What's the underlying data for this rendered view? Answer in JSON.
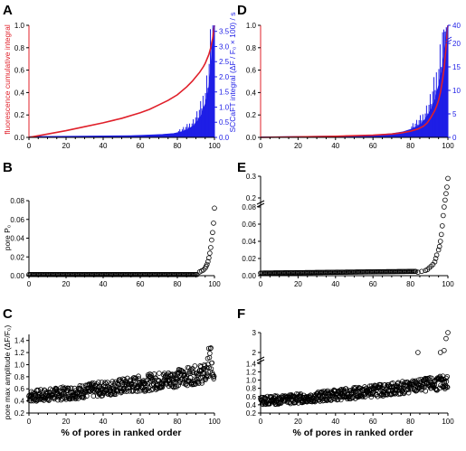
{
  "colors": {
    "axis": "#000000",
    "red_line": "#e0202a",
    "blue_fill": "#1e1ee6",
    "marker_stroke": "#000000"
  },
  "chart_data": [
    {
      "id": "A",
      "type": "area",
      "panel_label": "A",
      "ylabel_left": "fluorescence cumulative integral",
      "xlim": [
        0,
        100
      ],
      "ylim_left": [
        0,
        1.0
      ],
      "ylim_right": [
        0,
        3.7
      ],
      "x_ticks": [
        "0",
        "20",
        "40",
        "60",
        "80",
        "100"
      ],
      "y_ticks_left": [
        "0.0",
        "0.2",
        "0.4",
        "0.6",
        "0.8",
        "1.0"
      ],
      "y_ticks_right": [
        "0.0",
        "0.5",
        "1.0",
        "1.5",
        "2.0",
        "2.5",
        "3.0",
        "3.5"
      ],
      "series": [
        {
          "axis": "left",
          "style": "line",
          "x": [
            0,
            10,
            20,
            30,
            40,
            50,
            60,
            65,
            70,
            75,
            80,
            85,
            88,
            90,
            92,
            94,
            95,
            96,
            97,
            98,
            99,
            100
          ],
          "y": [
            0,
            0.03,
            0.06,
            0.095,
            0.13,
            0.17,
            0.22,
            0.25,
            0.29,
            0.33,
            0.38,
            0.45,
            0.5,
            0.54,
            0.58,
            0.63,
            0.66,
            0.7,
            0.74,
            0.8,
            0.88,
            1.0
          ]
        },
        {
          "axis": "right",
          "style": "filled-bars",
          "x": [
            0,
            20,
            40,
            55,
            65,
            72,
            78,
            82,
            85,
            87,
            89,
            90,
            91,
            92,
            93,
            94,
            95,
            96,
            97,
            98,
            98.5,
            99,
            99.5,
            100
          ],
          "y": [
            0.03,
            0.04,
            0.05,
            0.06,
            0.08,
            0.1,
            0.13,
            0.18,
            0.25,
            0.32,
            0.4,
            0.5,
            0.55,
            0.65,
            0.75,
            0.95,
            1.1,
            1.35,
            1.7,
            2.3,
            2.8,
            3.2,
            3.6,
            3.7
          ]
        }
      ]
    },
    {
      "id": "D",
      "type": "area",
      "panel_label": "D",
      "ylabel_right": "SCCaFT integral (ΔF / F₀ × 100) / s",
      "xlim": [
        0,
        100
      ],
      "ylim_left": [
        0,
        1.0
      ],
      "ylim_right": [
        0,
        40
      ],
      "x_ticks": [
        "0",
        "20",
        "40",
        "60",
        "80",
        "100"
      ],
      "y_ticks_left": [
        "0.0",
        "0.2",
        "0.4",
        "0.6",
        "0.8",
        "1.0"
      ],
      "y_ticks_right": [
        "0",
        "5",
        "10",
        "15",
        "20",
        "40"
      ],
      "right_axis_break": true,
      "series": [
        {
          "axis": "left",
          "style": "line",
          "x": [
            0,
            20,
            40,
            60,
            70,
            75,
            80,
            84,
            87,
            89,
            91,
            93,
            94,
            95,
            96,
            97,
            98,
            99,
            100
          ],
          "y": [
            0,
            0.005,
            0.01,
            0.02,
            0.03,
            0.04,
            0.055,
            0.075,
            0.1,
            0.13,
            0.18,
            0.24,
            0.28,
            0.33,
            0.4,
            0.5,
            0.62,
            0.8,
            1.0
          ]
        },
        {
          "axis": "right",
          "style": "filled-bars",
          "x": [
            0,
            20,
            40,
            60,
            70,
            76,
            80,
            84,
            86,
            88,
            90,
            91,
            92,
            93,
            94,
            95,
            96,
            97,
            98,
            98.5,
            99,
            100
          ],
          "y": [
            0.1,
            0.2,
            0.3,
            0.5,
            0.8,
            1.2,
            1.7,
            2.4,
            3.0,
            4.0,
            5.2,
            6.0,
            7.0,
            8.0,
            9.5,
            11.0,
            13.0,
            15.0,
            18.0,
            20.0,
            22.0,
            40.0
          ]
        }
      ]
    },
    {
      "id": "B",
      "type": "scatter",
      "panel_label": "B",
      "ylabel": "pore P₀",
      "xlim": [
        0,
        100
      ],
      "ylim": [
        0,
        0.08
      ],
      "x_ticks": [
        "0",
        "20",
        "40",
        "60",
        "80",
        "100"
      ],
      "y_ticks": [
        "0.00",
        "0.02",
        "0.04",
        "0.06",
        "0.08"
      ],
      "x": [
        92,
        93,
        94,
        95,
        95.5,
        96,
        96.5,
        97,
        97.5,
        98,
        98.5,
        99,
        99.5,
        100
      ],
      "y": [
        0.004,
        0.005,
        0.006,
        0.008,
        0.01,
        0.012,
        0.015,
        0.019,
        0.024,
        0.03,
        0.038,
        0.046,
        0.056,
        0.072
      ]
    },
    {
      "id": "E",
      "type": "scatter",
      "panel_label": "E",
      "xlim": [
        0,
        100
      ],
      "ylim": [
        0,
        0.3
      ],
      "y_ticks": [
        "0.00",
        "0.02",
        "0.04",
        "0.06",
        "0.08",
        "0.2",
        "0.3"
      ],
      "x_ticks": [
        "0",
        "20",
        "40",
        "60",
        "80",
        "100"
      ],
      "y_axis_break": true,
      "x": [
        84,
        86,
        88,
        89,
        90,
        91,
        92,
        93,
        93.5,
        94,
        95,
        95.5,
        96,
        96.5,
        97,
        97.5,
        98,
        98.5,
        99,
        99.5,
        100
      ],
      "y": [
        0.004,
        0.005,
        0.006,
        0.007,
        0.009,
        0.011,
        0.013,
        0.016,
        0.02,
        0.024,
        0.03,
        0.034,
        0.04,
        0.048,
        0.058,
        0.07,
        0.08,
        0.19,
        0.22,
        0.25,
        0.29
      ]
    },
    {
      "id": "C",
      "type": "scatter",
      "panel_label": "C",
      "ylabel": "pore max amplitude (ΔF/F₀)",
      "xlabel": "% of pores in ranked order",
      "xlim": [
        0,
        100
      ],
      "ylim": [
        0.2,
        1.5
      ],
      "x_ticks": [
        "0",
        "20",
        "40",
        "60",
        "80",
        "100"
      ],
      "y_ticks": [
        "0.2",
        "0.4",
        "0.6",
        "0.8",
        "1.0",
        "1.2",
        "1.4"
      ],
      "trend": {
        "start": 0.48,
        "end": 0.88,
        "spread": 0.16
      }
    },
    {
      "id": "F",
      "type": "scatter",
      "panel_label": "F",
      "xlabel": "% of pores in ranked order",
      "xlim": [
        0,
        100
      ],
      "ylim": [
        0.2,
        3.0
      ],
      "x_ticks": [
        "0",
        "20",
        "40",
        "60",
        "80",
        "100"
      ],
      "y_ticks": [
        "0.2",
        "0.4",
        "0.6",
        "0.8",
        "1.0",
        "1.2",
        "1.4",
        "2",
        "3"
      ],
      "y_axis_break": true,
      "trend": {
        "start": 0.5,
        "end": 0.95,
        "spread": 0.17
      },
      "outliers": {
        "x": [
          84,
          96,
          98,
          99,
          100
        ],
        "y": [
          2.0,
          2.0,
          2.1,
          2.7,
          3.0
        ]
      }
    }
  ]
}
